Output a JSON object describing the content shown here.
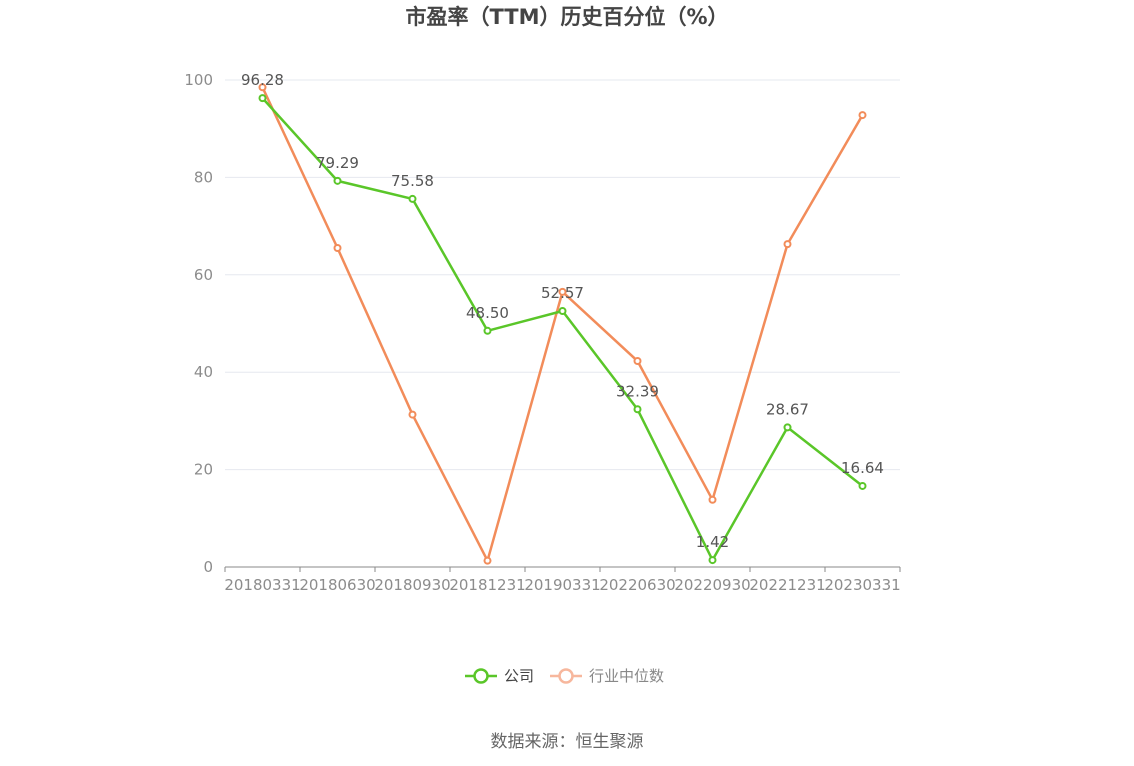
{
  "chart_data": {
    "type": "line",
    "title": "市盈率（TTM）历史百分位（%）",
    "categories": [
      "20180331",
      "20180630",
      "20180930",
      "20181231",
      "20190331",
      "20220630",
      "20220930",
      "20221231",
      "20230331"
    ],
    "series": [
      {
        "name": "公司",
        "values": [
          96.28,
          79.29,
          75.58,
          48.5,
          52.57,
          32.39,
          1.42,
          28.67,
          16.64
        ],
        "labels": [
          "96.28",
          "79.29",
          "75.58",
          "48.50",
          "52.57",
          "32.39",
          "1.42",
          "28.67",
          "16.64"
        ],
        "color": "#5ac629"
      },
      {
        "name": "行业中位数",
        "values": [
          98.5,
          65.5,
          31.3,
          1.3,
          56.5,
          42.3,
          13.8,
          66.3,
          92.8
        ],
        "color": "#f28c5a",
        "legend_color": "#f7b79d"
      }
    ],
    "ylim": [
      0,
      100
    ],
    "yticks": [
      0,
      20,
      40,
      60,
      80,
      100
    ],
    "grid": true,
    "legend_position": "bottom-center"
  },
  "source": "数据来源：恒生聚源"
}
